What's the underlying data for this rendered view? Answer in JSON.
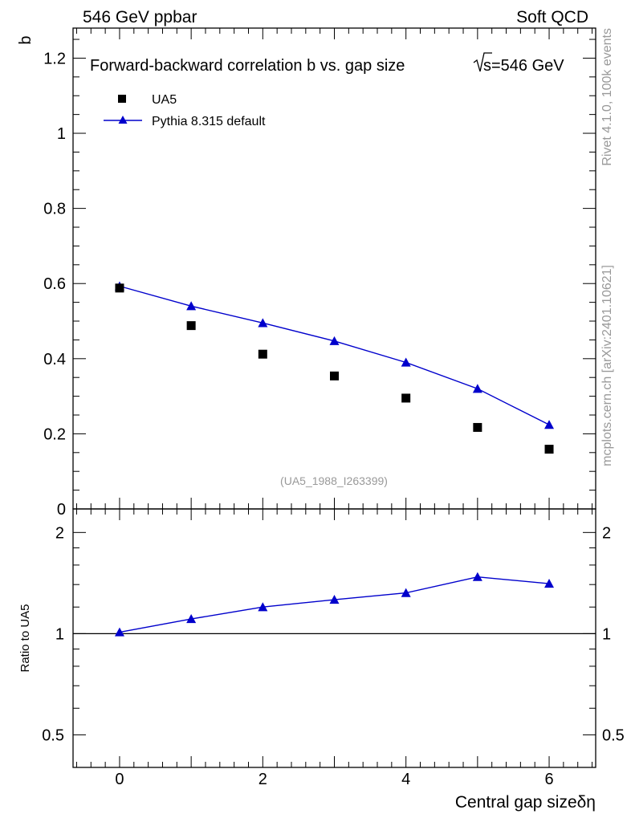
{
  "header": {
    "left": "546 GeV ppbar",
    "right": "Soft QCD"
  },
  "side_labels": {
    "rivet": "Rivet 4.1.0,  100k events",
    "mcplots": "mcplots.cern.ch [arXiv:2401.10621]"
  },
  "chart_data": [
    {
      "type": "scatter",
      "panel": "main",
      "title": "Forward-backward correlation b  vs. gap size",
      "title_energy": "s=546 GeV",
      "ylabel": "b",
      "xlabel": "Central gap sizeδη",
      "analysis_id": "(UA5_1988_I263399)",
      "xlim": [
        -0.65,
        6.65
      ],
      "ylim": [
        0,
        1.28
      ],
      "x_ticks": [
        "0",
        "2",
        "4",
        "6"
      ],
      "y_ticks": [
        "0",
        "0.2",
        "0.4",
        "0.6",
        "0.8",
        "1",
        "1.2"
      ],
      "legend_position": "top-left",
      "series": [
        {
          "name": "UA5",
          "marker": "square",
          "color": "#000000",
          "x": [
            0,
            1,
            2,
            3,
            4,
            5,
            6
          ],
          "values": [
            0.588,
            0.488,
            0.412,
            0.354,
            0.295,
            0.217,
            0.159
          ]
        },
        {
          "name": "Pythia 8.315 default",
          "marker": "triangle",
          "line": true,
          "color": "#0000cc",
          "x": [
            0,
            1,
            2,
            3,
            4,
            5,
            6
          ],
          "values": [
            0.593,
            0.54,
            0.495,
            0.447,
            0.39,
            0.32,
            0.224
          ]
        }
      ]
    },
    {
      "type": "line",
      "panel": "ratio",
      "ylabel": "Ratio to UA5",
      "xlim": [
        -0.65,
        6.65
      ],
      "ylim": [
        0.4,
        2.35
      ],
      "y_ticks": [
        "0.5",
        "1",
        "2"
      ],
      "reference_line": 1,
      "series": [
        {
          "name": "Pythia 8.315 default",
          "marker": "triangle",
          "color": "#0000cc",
          "x": [
            0,
            1,
            2,
            3,
            4,
            5,
            6
          ],
          "values": [
            1.01,
            1.106,
            1.2,
            1.262,
            1.322,
            1.475,
            1.409
          ]
        }
      ]
    }
  ]
}
